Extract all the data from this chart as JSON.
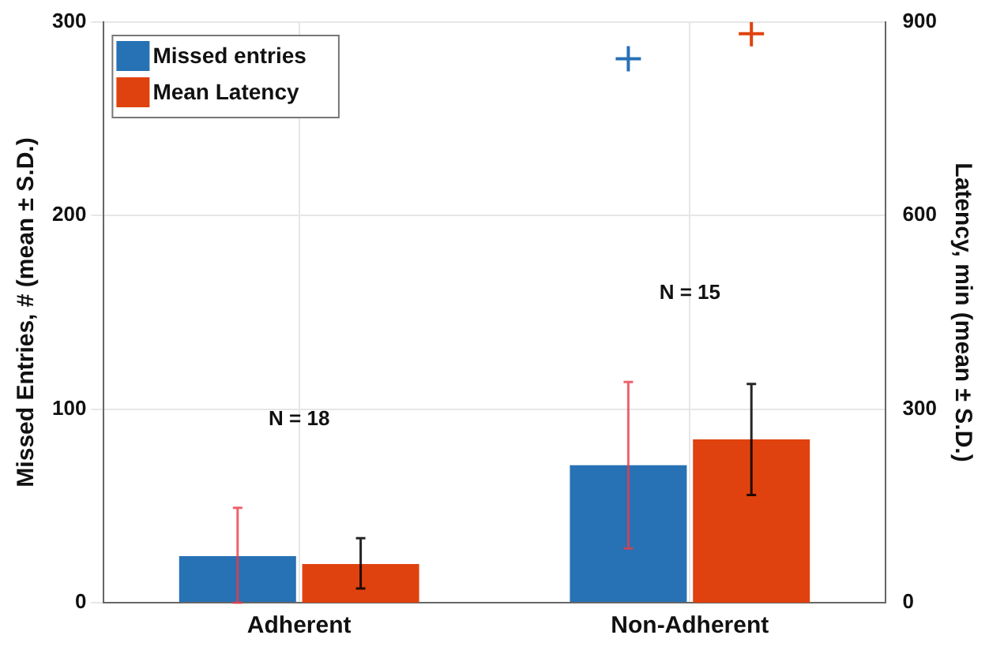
{
  "chart_data": {
    "type": "bar",
    "categories": [
      "Adherent",
      "Non-Adherent"
    ],
    "series": [
      {
        "name": "Missed entries",
        "color": "#2771b5",
        "values": [
          24,
          71
        ],
        "errors": [
          [
            0,
            49
          ],
          [
            28,
            114
          ]
        ]
      },
      {
        "name": "Mean Latency",
        "color": "#e0420f",
        "axis": "y2",
        "values": [
          60,
          253
        ],
        "errors": [
          [
            22,
            100
          ],
          [
            167,
            339
          ]
        ]
      },
      {
        "type": "scatter",
        "color": "#2771b5",
        "x": [
          "Non-Adherent"
        ],
        "values": [
          281
        ],
        "marker": "cross"
      },
      {
        "type": "scatter",
        "color": "#e0420f",
        "axis": "y2",
        "x": [
          "Non-Adherent"
        ],
        "values": [
          882
        ],
        "marker": "cross"
      }
    ],
    "ylabel": "Missed Entries, # (mean ± S.D.)",
    "y2label": "Latency, min (mean ± S.D.)",
    "ylim": [
      0,
      300
    ],
    "yticks": [
      0,
      100,
      200,
      300
    ],
    "y2lim": [
      0,
      900
    ],
    "y2ticks": [
      0,
      300,
      600,
      900
    ],
    "annotations": [
      "N = 18",
      "N = 15"
    ],
    "grid": true,
    "legend": "top left"
  }
}
